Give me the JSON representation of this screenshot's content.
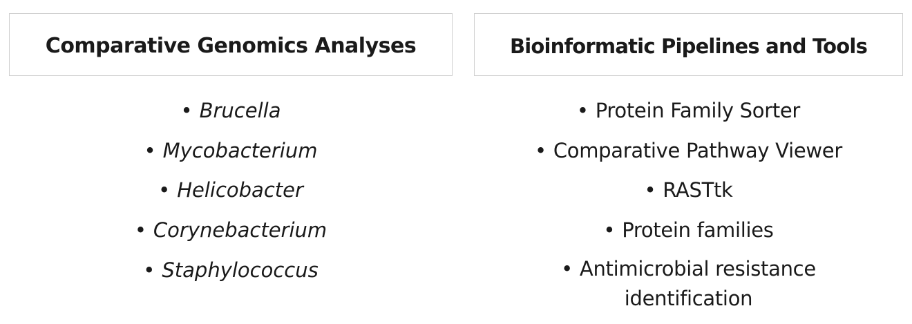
{
  "left_panel": {
    "heading": "Comparative Genomics Analyses",
    "items": [
      "Brucella",
      "Mycobacterium",
      "Helicobacter",
      "Corynebacterium",
      "Staphylococcus"
    ]
  },
  "right_panel": {
    "heading": "Bioinformatic Pipelines and Tools",
    "items": [
      "Protein Family Sorter",
      "Comparative Pathway Viewer",
      "RASTtk",
      "Protein families",
      "Antimicrobial resistance"
    ],
    "item_continuation": "identification"
  },
  "bullet_glyph": "•"
}
